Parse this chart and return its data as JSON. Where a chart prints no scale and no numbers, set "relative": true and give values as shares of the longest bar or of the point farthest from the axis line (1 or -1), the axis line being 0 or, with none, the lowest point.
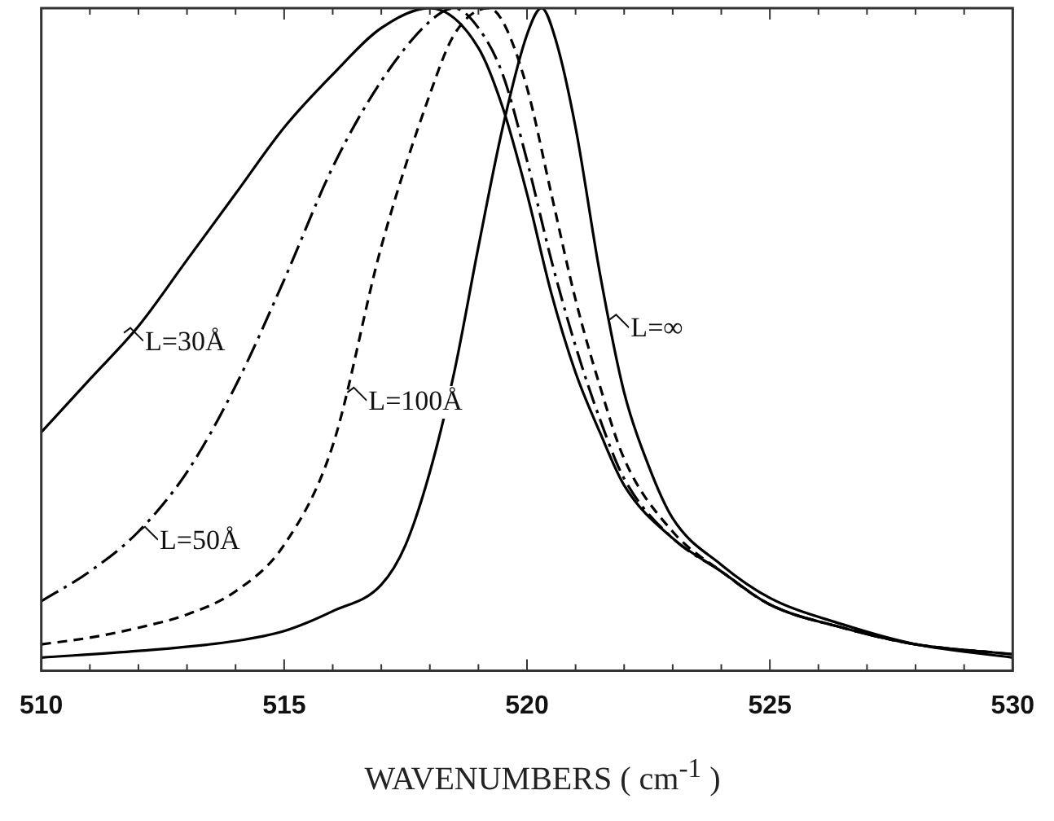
{
  "chart_data": {
    "type": "line",
    "relative": true,
    "xlabel": "WAVENUMBERS ( cm$^{-1}$ )",
    "xlim": [
      510,
      530
    ],
    "xticks": [
      510,
      {
        "value": 511,
        "label": null
      },
      {
        "value": 512,
        "label": null
      },
      {
        "value": 513,
        "label": null
      },
      {
        "value": 514,
        "label": null
      },
      515,
      {
        "value": 516,
        "label": null
      },
      {
        "value": 517,
        "label": null
      },
      {
        "value": 518,
        "label": null
      },
      {
        "value": 519,
        "label": null
      },
      520,
      {
        "value": 521,
        "label": null
      },
      {
        "value": 522,
        "label": null
      },
      {
        "value": 523,
        "label": null
      },
      {
        "value": 524,
        "label": null
      },
      525,
      {
        "value": 526,
        "label": null
      },
      {
        "value": 527,
        "label": null
      },
      {
        "value": 528,
        "label": null
      },
      {
        "value": 529,
        "label": null
      },
      530
    ],
    "grid": false,
    "legend": false,
    "marker": "none",
    "series": [
      {
        "color": "#000000",
        "line_style": "solid",
        "x": [
          510,
          511,
          512,
          513,
          514,
          515,
          516,
          517,
          518,
          519,
          519.5,
          520,
          520.5,
          521,
          521.5,
          522,
          523,
          524,
          525,
          526.5,
          528,
          530
        ],
        "values": [
          0.36,
          0.44,
          0.52,
          0.62,
          0.72,
          0.82,
          0.9,
          0.97,
          1.0,
          0.94,
          0.85,
          0.72,
          0.57,
          0.45,
          0.36,
          0.28,
          0.2,
          0.15,
          0.1,
          0.065,
          0.04,
          0.025
        ]
      },
      {
        "color": "#000000",
        "line_style": "dashdot",
        "x": [
          510,
          511,
          512,
          513,
          514,
          515,
          516,
          517,
          518,
          518.5,
          519,
          519.5,
          520,
          520.5,
          521,
          521.5,
          522,
          523,
          524,
          525,
          526.5,
          528,
          530
        ],
        "values": [
          0.105,
          0.15,
          0.21,
          0.3,
          0.43,
          0.59,
          0.76,
          0.89,
          0.98,
          1.0,
          0.97,
          0.9,
          0.77,
          0.62,
          0.49,
          0.38,
          0.29,
          0.2,
          0.15,
          0.1,
          0.065,
          0.04,
          0.025
        ]
      },
      {
        "color": "#000000",
        "line_style": "dashed",
        "x": [
          510,
          511,
          512,
          513,
          514,
          515,
          516,
          517,
          518,
          518.5,
          519.2,
          519.5,
          520,
          520.5,
          521,
          521.5,
          522,
          523,
          524,
          525,
          526.5,
          528,
          530
        ],
        "values": [
          0.04,
          0.05,
          0.065,
          0.085,
          0.12,
          0.19,
          0.34,
          0.64,
          0.87,
          0.96,
          1.0,
          0.98,
          0.88,
          0.72,
          0.56,
          0.43,
          0.32,
          0.21,
          0.15,
          0.1,
          0.065,
          0.04,
          0.025
        ]
      },
      {
        "color": "#000000",
        "line_style": "solid",
        "x": [
          510,
          512,
          514,
          515,
          516,
          517,
          517.5,
          518,
          518.5,
          519,
          519.5,
          520,
          520.3,
          520.6,
          521,
          521.5,
          522,
          522.5,
          523,
          524,
          525,
          526.5,
          528,
          530
        ],
        "values": [
          0.02,
          0.03,
          0.045,
          0.06,
          0.09,
          0.13,
          0.19,
          0.3,
          0.45,
          0.64,
          0.82,
          0.96,
          1.0,
          0.95,
          0.82,
          0.6,
          0.42,
          0.31,
          0.23,
          0.16,
          0.11,
          0.07,
          0.04,
          0.02
        ]
      }
    ],
    "annotations": [
      {
        "text": "L=30Å",
        "x": 511.7,
        "y": 0.51
      },
      {
        "text": "L=50Å",
        "x": 512,
        "y": 0.21
      },
      {
        "text": "L=100Å",
        "x": 516.3,
        "y": 0.42
      },
      {
        "text": "L=∞",
        "x": 521.7,
        "y": 0.53
      }
    ]
  }
}
